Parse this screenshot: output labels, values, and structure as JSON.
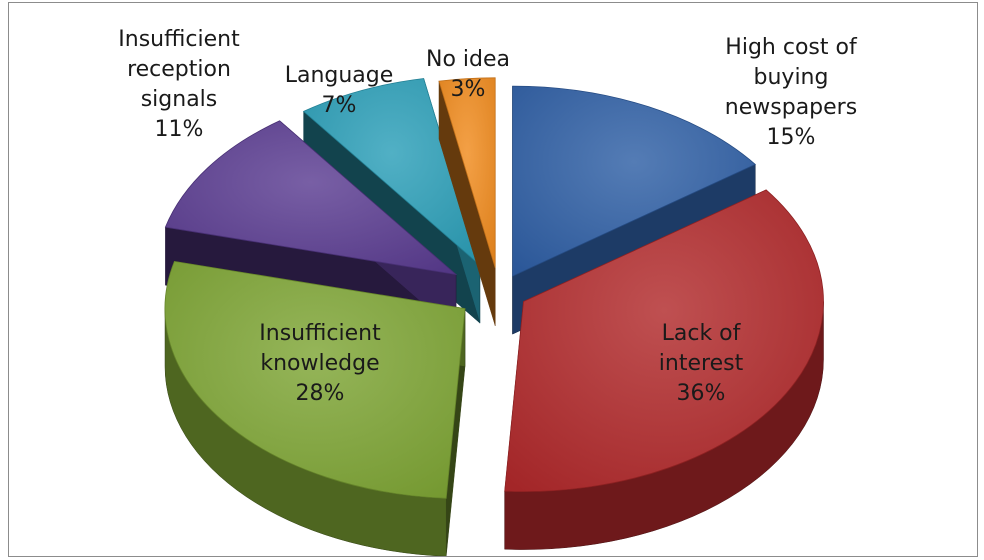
{
  "chart_data": {
    "type": "pie",
    "style": "3d-exploded",
    "legend": "none",
    "slices": [
      {
        "label_lines": [
          "High cost of",
          "buying",
          "newspapers"
        ],
        "percent_text": "15%",
        "value": 15,
        "color": "#2f5fa5"
      },
      {
        "label_lines": [
          "Lack of",
          "interest"
        ],
        "percent_text": "36%",
        "value": 36,
        "color": "#b1292b"
      },
      {
        "label_lines": [
          "Insufficient",
          "knowledge"
        ],
        "percent_text": "28%",
        "value": 28,
        "color": "#7ea534"
      },
      {
        "label_lines": [
          "Insufficient",
          "reception",
          "signals"
        ],
        "percent_text": "11%",
        "value": 11,
        "color": "#5a3c91"
      },
      {
        "label_lines": [
          "Language"
        ],
        "percent_text": "7%",
        "value": 7,
        "color": "#2b9fb8"
      },
      {
        "label_lines": [
          "No idea"
        ],
        "percent_text": "3%",
        "value": 3,
        "color": "#f08b1e"
      }
    ]
  }
}
